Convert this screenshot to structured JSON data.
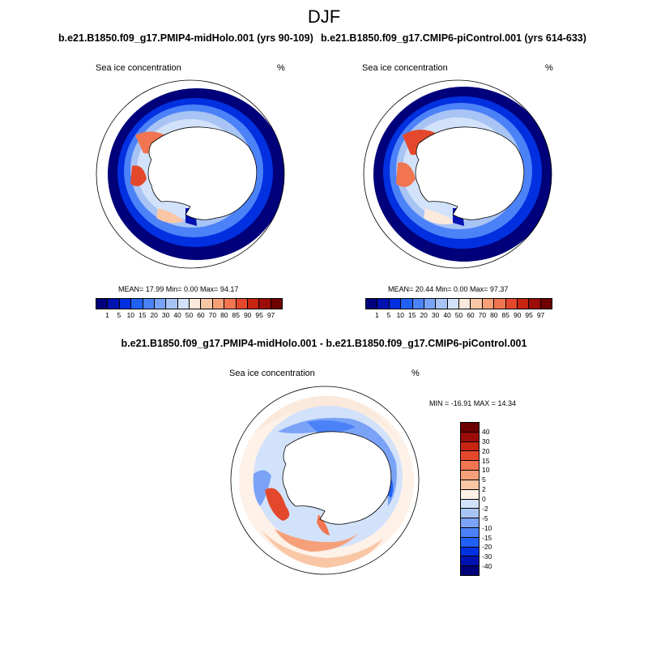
{
  "title": "DJF",
  "left_panel": {
    "case_title": "b.e21.B1850.f09_g17.PMIP4-midHolo.001 (yrs 90-109)",
    "variable": "Sea ice concentration",
    "units": "%",
    "stats": "MEAN=  17.99  Min=   0.00  Max=  94.17"
  },
  "right_panel": {
    "case_title": "b.e21.B1850.f09_g17.CMIP6-piControl.001 (yrs 614-633)",
    "variable": "Sea ice concentration",
    "units": "%",
    "stats": "MEAN=  20.44  Min=   0.00  Max=  97.37"
  },
  "diff_panel": {
    "title": "b.e21.B1850.f09_g17.PMIP4-midHolo.001 - b.e21.B1850.f09_g17.CMIP6-piControl.001",
    "variable": "Sea ice concentration",
    "units": "%",
    "minmax": "MIN = -16.91 MAX =  14.34"
  },
  "abs_colorbar": {
    "labels": [
      "1",
      "5",
      "10",
      "15",
      "20",
      "30",
      "40",
      "50",
      "60",
      "70",
      "80",
      "85",
      "90",
      "95",
      "97"
    ],
    "colors": [
      "#00007a",
      "#0012b0",
      "#0030e0",
      "#2060f5",
      "#4c82f8",
      "#7aa3f7",
      "#a8c4f5",
      "#d2e2fa",
      "#fbe9dc",
      "#f9c6a6",
      "#f6a07a",
      "#f17551",
      "#e4482c",
      "#c72412",
      "#9c0c08",
      "#6e0000"
    ]
  },
  "diff_colorbar": {
    "labels": [
      "40",
      "30",
      "20",
      "15",
      "10",
      "5",
      "2",
      "0",
      "-2",
      "-5",
      "-10",
      "-15",
      "-20",
      "-30",
      "-40"
    ],
    "colors": [
      "#6e0000",
      "#9c0c08",
      "#c72412",
      "#e4482c",
      "#f17551",
      "#f6a07a",
      "#f9c6a6",
      "#fdf1e8",
      "#d2e2fa",
      "#a8c4f5",
      "#7aa3f7",
      "#4c82f8",
      "#2060f5",
      "#0030e0",
      "#0012b0",
      "#00007a"
    ]
  }
}
